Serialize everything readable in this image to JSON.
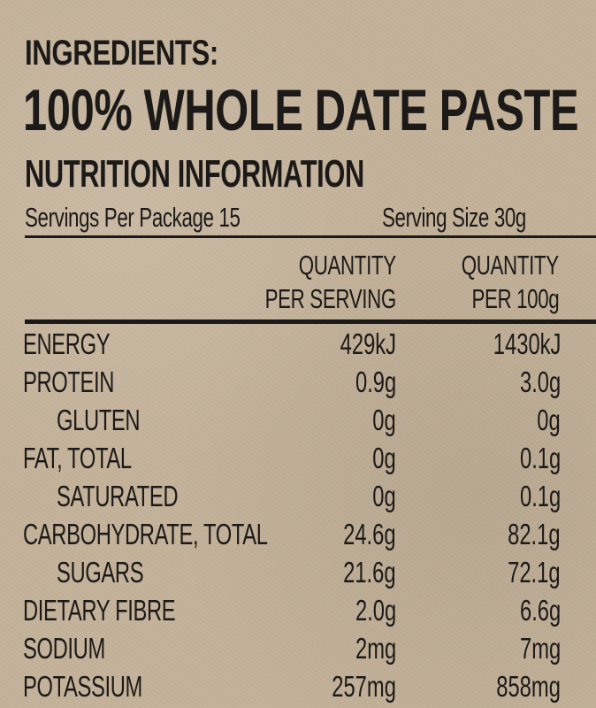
{
  "ingredients_title": "INGREDIENTS:",
  "product": "100% WHOLE DATE PASTE",
  "nutrition_title": "NUTRITION INFORMATION",
  "servings_per_package": "Servings Per Package 15",
  "serving_size": "Serving Size 30g",
  "columns": {
    "per_serving": [
      "QUANTITY",
      "PER SERVING"
    ],
    "per_100g": [
      "QUANTITY",
      "PER 100g"
    ]
  },
  "rows": [
    {
      "name": "ENERGY",
      "per_serving": "429kJ",
      "per_100g": "1430kJ",
      "indent": false
    },
    {
      "name": "PROTEIN",
      "per_serving": "0.9g",
      "per_100g": "3.0g",
      "indent": false
    },
    {
      "name": "GLUTEN",
      "per_serving": "0g",
      "per_100g": "0g",
      "indent": true
    },
    {
      "name": "FAT, TOTAL",
      "per_serving": "0g",
      "per_100g": "0.1g",
      "indent": false
    },
    {
      "name": "SATURATED",
      "per_serving": "0g",
      "per_100g": "0.1g",
      "indent": true
    },
    {
      "name": "CARBOHYDRATE, TOTAL",
      "per_serving": "24.6g",
      "per_100g": "82.1g",
      "indent": false
    },
    {
      "name": "SUGARS",
      "per_serving": "21.6g",
      "per_100g": "72.1g",
      "indent": true
    },
    {
      "name": "DIETARY FIBRE",
      "per_serving": "2.0g",
      "per_100g": "6.6g",
      "indent": false
    },
    {
      "name": "SODIUM",
      "per_serving": "2mg",
      "per_100g": "7mg",
      "indent": false
    },
    {
      "name": "POTASSIUM",
      "per_serving": "257mg",
      "per_100g": "858mg",
      "indent": false
    }
  ]
}
